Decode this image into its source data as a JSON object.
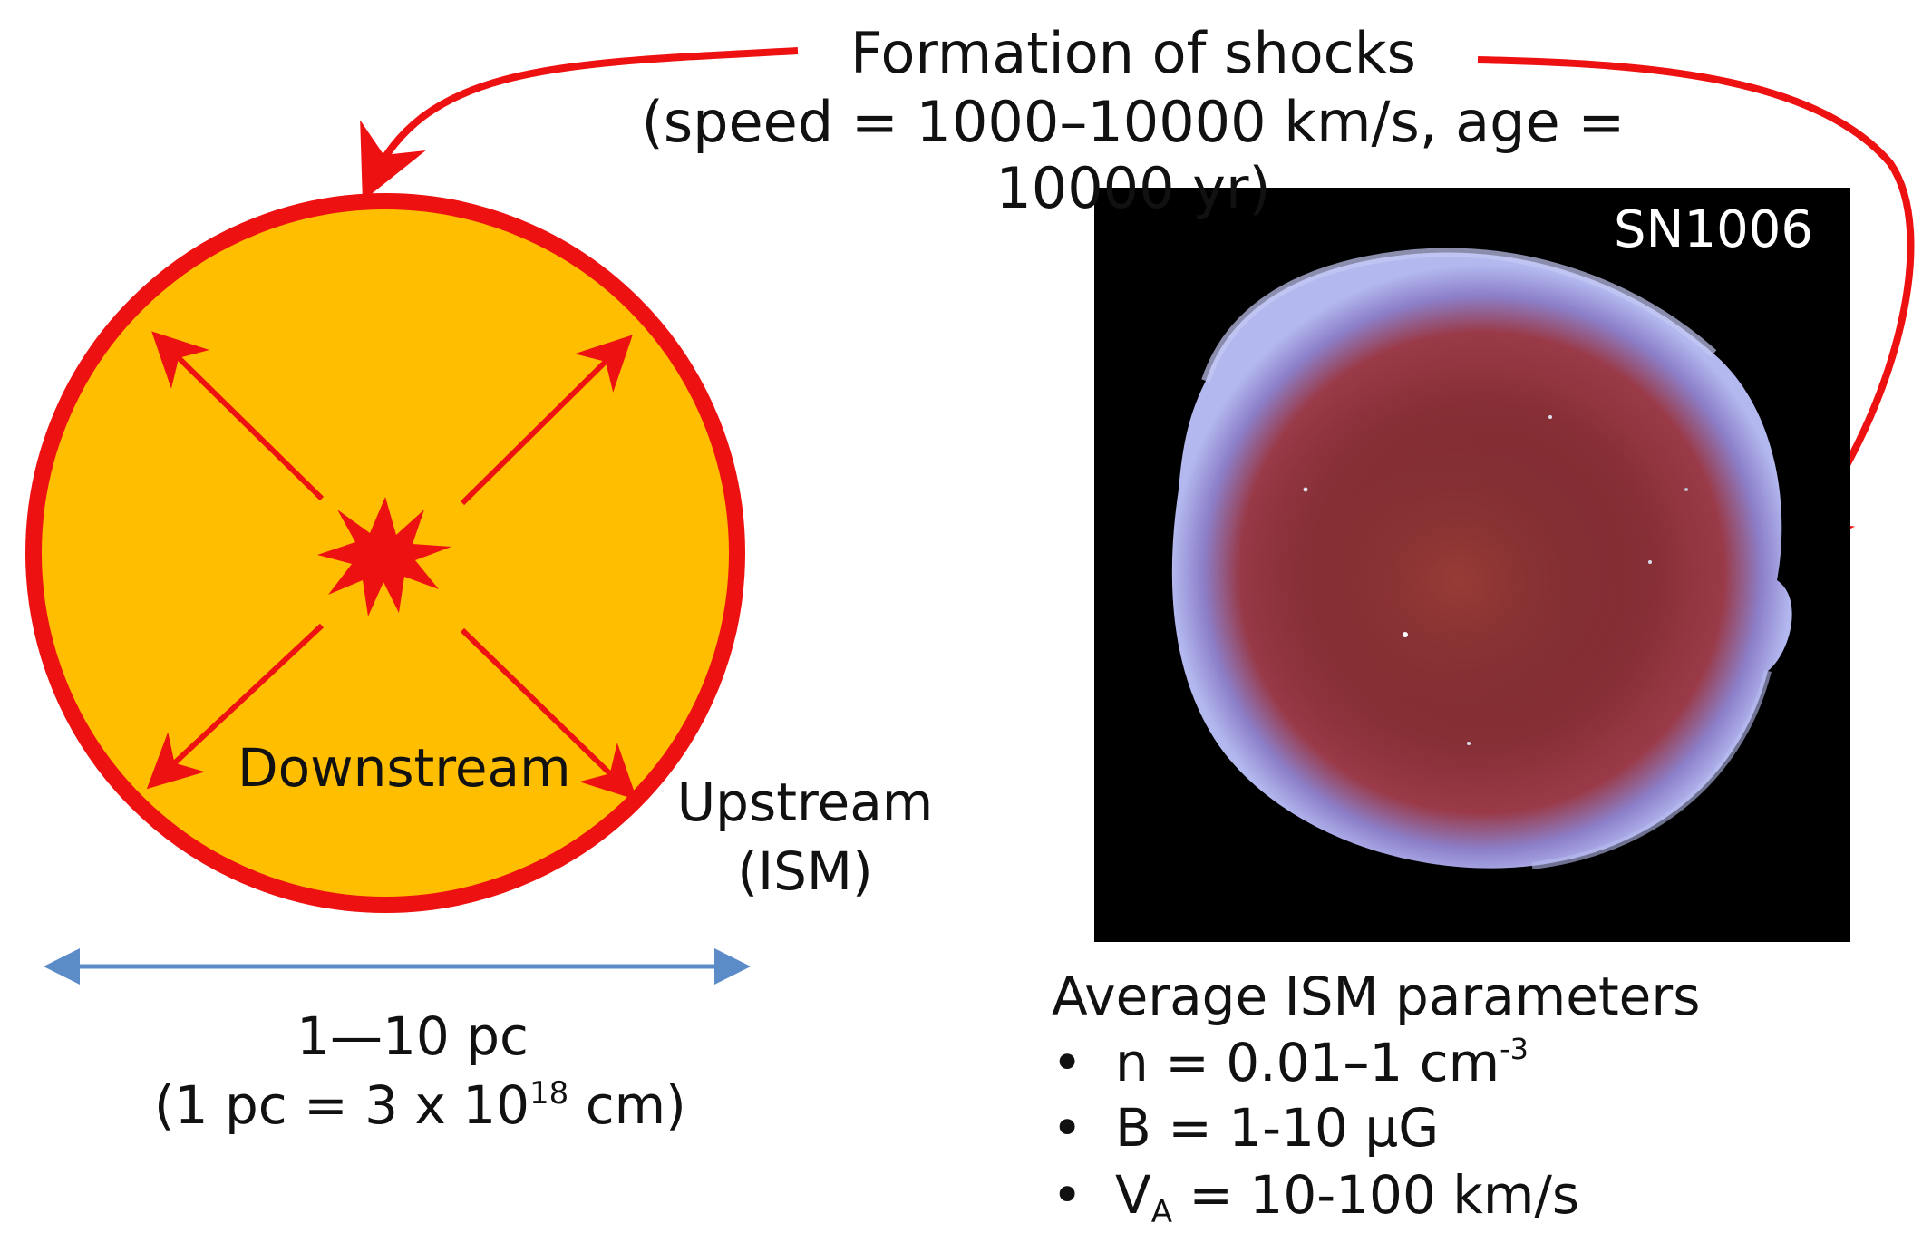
{
  "title": {
    "line1": "Formation of shocks",
    "line2": "(speed = 1000–10000 km/s, age = 10000 yr)"
  },
  "diagram": {
    "downstream_label": "Downstream",
    "upstream_label_line1": "Upstream",
    "upstream_label_line2": "(ISM)",
    "scale_line1": "1—10 pc",
    "scale_line2_prefix": "(1 pc = 3 x 10",
    "scale_line2_exp": "18",
    "scale_line2_suffix": " cm)"
  },
  "image": {
    "label": "SN1006"
  },
  "ism_parameters": {
    "heading": "Average ISM parameters",
    "bullet_char": "•",
    "items": [
      {
        "prefix": "n = 0.01–1 cm",
        "sup": "-3"
      },
      {
        "text": "B = 1-10 μG"
      },
      {
        "prefix": "V",
        "sub": "A",
        "suffix": " = 10-100 km/s"
      }
    ]
  },
  "colors": {
    "shell_red": "#ee1111",
    "fill_orange": "#ffbf00",
    "scale_blue": "#5b8cc8",
    "image_bg": "#000000"
  }
}
